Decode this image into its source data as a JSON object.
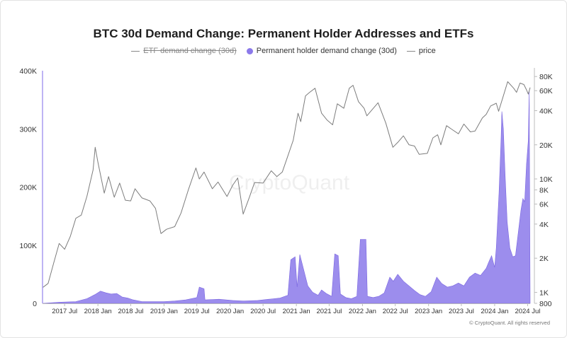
{
  "chart_data": {
    "type": "area",
    "title": "BTC 30d Demand Change: Permanent Holder Addresses and ETFs",
    "legend": [
      {
        "name": "ETF demand change (30d)",
        "style": "line",
        "color": "#8a8a8a",
        "hidden": true
      },
      {
        "name": "Permanent holder demand change (30d)",
        "style": "dot",
        "color": "#8b79ea",
        "hidden": false
      },
      {
        "name": "price",
        "style": "line",
        "color": "#8a8a8a",
        "hidden": false
      }
    ],
    "legend_position": "top-center",
    "x_ticks": [
      "2017 Jul",
      "2018 Jan",
      "2018 Jul",
      "2019 Jan",
      "2019 Jul",
      "2020 Jan",
      "2020 Jul",
      "2021 Jan",
      "2021 Jul",
      "2022 Jan",
      "2022 Jul",
      "2023 Jan",
      "2023 Jul",
      "2024 Jan",
      "2024 Jul"
    ],
    "x_range": [
      "2017-03-01",
      "2024-07-15"
    ],
    "y_left": {
      "ticks": [
        0,
        100000,
        200000,
        300000,
        400000
      ],
      "tick_labels": [
        "0",
        "100K",
        "200K",
        "300K",
        "400K"
      ],
      "range": [
        0,
        400000
      ]
    },
    "y_right": {
      "scale": "log",
      "ticks": [
        800,
        1000,
        2000,
        4000,
        6000,
        8000,
        10000,
        20000,
        40000,
        60000,
        80000
      ],
      "tick_labels": [
        "800",
        "1K",
        "2K",
        "4K",
        "6K",
        "8K",
        "10K",
        "20K",
        "40K",
        "60K",
        "80K"
      ],
      "range": [
        800,
        90000
      ]
    },
    "grid": false,
    "series": [
      {
        "name": "Permanent holder demand change (30d)",
        "axis": "left",
        "color": "#8b79ea",
        "points": [
          [
            "2017-03-01",
            0
          ],
          [
            "2017-06-01",
            2000
          ],
          [
            "2017-09-01",
            3000
          ],
          [
            "2017-11-01",
            8000
          ],
          [
            "2017-12-15",
            15000
          ],
          [
            "2018-01-15",
            21000
          ],
          [
            "2018-02-15",
            18000
          ],
          [
            "2018-03-15",
            16000
          ],
          [
            "2018-04-15",
            17000
          ],
          [
            "2018-05-15",
            11000
          ],
          [
            "2018-06-15",
            9000
          ],
          [
            "2018-07-15",
            6000
          ],
          [
            "2018-09-01",
            3000
          ],
          [
            "2018-11-01",
            3000
          ],
          [
            "2019-01-01",
            3000
          ],
          [
            "2019-03-01",
            4000
          ],
          [
            "2019-05-01",
            6000
          ],
          [
            "2019-06-01",
            8000
          ],
          [
            "2019-07-01",
            10000
          ],
          [
            "2019-07-15",
            28000
          ],
          [
            "2019-08-10",
            25000
          ],
          [
            "2019-08-15",
            6000
          ],
          [
            "2019-11-01",
            7000
          ],
          [
            "2020-01-15",
            5000
          ],
          [
            "2020-03-15",
            4000
          ],
          [
            "2020-06-01",
            5000
          ],
          [
            "2020-08-01",
            7000
          ],
          [
            "2020-10-01",
            9000
          ],
          [
            "2020-11-15",
            14000
          ],
          [
            "2020-12-01",
            75000
          ],
          [
            "2020-12-25",
            80000
          ],
          [
            "2021-01-05",
            28000
          ],
          [
            "2021-01-20",
            84000
          ],
          [
            "2021-02-15",
            52000
          ],
          [
            "2021-03-05",
            30000
          ],
          [
            "2021-04-01",
            19000
          ],
          [
            "2021-05-01",
            14000
          ],
          [
            "2021-05-20",
            23000
          ],
          [
            "2021-06-15",
            17000
          ],
          [
            "2021-07-15",
            12000
          ],
          [
            "2021-08-01",
            85000
          ],
          [
            "2021-08-20",
            82000
          ],
          [
            "2021-09-01",
            16000
          ],
          [
            "2021-10-01",
            10000
          ],
          [
            "2021-11-01",
            8000
          ],
          [
            "2021-12-01",
            12000
          ],
          [
            "2021-12-20",
            110000
          ],
          [
            "2022-01-20",
            110000
          ],
          [
            "2022-01-28",
            12000
          ],
          [
            "2022-03-01",
            10000
          ],
          [
            "2022-04-01",
            12000
          ],
          [
            "2022-05-01",
            18000
          ],
          [
            "2022-06-01",
            45000
          ],
          [
            "2022-06-20",
            38000
          ],
          [
            "2022-07-15",
            50000
          ],
          [
            "2022-08-15",
            38000
          ],
          [
            "2022-09-15",
            30000
          ],
          [
            "2022-10-15",
            22000
          ],
          [
            "2022-11-15",
            15000
          ],
          [
            "2022-12-15",
            12000
          ],
          [
            "2023-01-15",
            20000
          ],
          [
            "2023-02-15",
            45000
          ],
          [
            "2023-03-15",
            34000
          ],
          [
            "2023-04-15",
            28000
          ],
          [
            "2023-05-15",
            30000
          ],
          [
            "2023-06-15",
            35000
          ],
          [
            "2023-07-15",
            30000
          ],
          [
            "2023-08-15",
            45000
          ],
          [
            "2023-09-15",
            52000
          ],
          [
            "2023-10-15",
            48000
          ],
          [
            "2023-11-15",
            60000
          ],
          [
            "2023-12-01",
            72000
          ],
          [
            "2023-12-15",
            82000
          ],
          [
            "2024-01-01",
            62000
          ],
          [
            "2024-01-10",
            95000
          ],
          [
            "2024-01-25",
            190000
          ],
          [
            "2024-02-05",
            280000
          ],
          [
            "2024-02-10",
            330000
          ],
          [
            "2024-02-18",
            300000
          ],
          [
            "2024-02-28",
            220000
          ],
          [
            "2024-03-10",
            140000
          ],
          [
            "2024-03-25",
            95000
          ],
          [
            "2024-04-10",
            80000
          ],
          [
            "2024-04-25",
            82000
          ],
          [
            "2024-05-10",
            120000
          ],
          [
            "2024-05-25",
            160000
          ],
          [
            "2024-06-05",
            180000
          ],
          [
            "2024-06-15",
            175000
          ],
          [
            "2024-06-25",
            240000
          ],
          [
            "2024-07-05",
            280000
          ],
          [
            "2024-07-10",
            365000
          ],
          [
            "2024-07-15",
            0
          ]
        ]
      },
      {
        "name": "price",
        "axis": "right",
        "color": "#7d7d7d",
        "points": [
          [
            "2017-03-01",
            1100
          ],
          [
            "2017-04-01",
            1200
          ],
          [
            "2017-05-01",
            1800
          ],
          [
            "2017-06-01",
            2700
          ],
          [
            "2017-07-01",
            2400
          ],
          [
            "2017-08-01",
            3100
          ],
          [
            "2017-09-01",
            4500
          ],
          [
            "2017-10-01",
            4800
          ],
          [
            "2017-11-01",
            7000
          ],
          [
            "2017-12-05",
            12000
          ],
          [
            "2017-12-17",
            19000
          ],
          [
            "2018-01-01",
            14000
          ],
          [
            "2018-02-05",
            7500
          ],
          [
            "2018-03-01",
            10500
          ],
          [
            "2018-04-01",
            6900
          ],
          [
            "2018-05-01",
            9200
          ],
          [
            "2018-06-01",
            6500
          ],
          [
            "2018-07-01",
            6400
          ],
          [
            "2018-07-25",
            8200
          ],
          [
            "2018-09-01",
            6800
          ],
          [
            "2018-10-15",
            6400
          ],
          [
            "2018-11-15",
            5500
          ],
          [
            "2018-12-15",
            3300
          ],
          [
            "2019-01-15",
            3600
          ],
          [
            "2019-03-01",
            3800
          ],
          [
            "2019-04-05",
            5000
          ],
          [
            "2019-05-15",
            8000
          ],
          [
            "2019-06-26",
            12500
          ],
          [
            "2019-07-15",
            10000
          ],
          [
            "2019-08-10",
            11500
          ],
          [
            "2019-09-25",
            8200
          ],
          [
            "2019-10-26",
            9400
          ],
          [
            "2019-12-15",
            7000
          ],
          [
            "2020-01-15",
            8800
          ],
          [
            "2020-02-12",
            10200
          ],
          [
            "2020-03-13",
            4900
          ],
          [
            "2020-04-15",
            6800
          ],
          [
            "2020-05-15",
            9300
          ],
          [
            "2020-07-01",
            9200
          ],
          [
            "2020-08-15",
            11800
          ],
          [
            "2020-09-15",
            10500
          ],
          [
            "2020-10-15",
            11500
          ],
          [
            "2020-11-15",
            16000
          ],
          [
            "2020-12-15",
            22000
          ],
          [
            "2021-01-10",
            38000
          ],
          [
            "2021-01-25",
            32000
          ],
          [
            "2021-02-20",
            54000
          ],
          [
            "2021-03-15",
            58000
          ],
          [
            "2021-04-14",
            63000
          ],
          [
            "2021-05-20",
            38000
          ],
          [
            "2021-06-20",
            33000
          ],
          [
            "2021-07-20",
            30000
          ],
          [
            "2021-08-15",
            46000
          ],
          [
            "2021-09-20",
            42000
          ],
          [
            "2021-10-20",
            63000
          ],
          [
            "2021-11-10",
            67000
          ],
          [
            "2021-12-10",
            48000
          ],
          [
            "2022-01-10",
            42000
          ],
          [
            "2022-01-25",
            36000
          ],
          [
            "2022-03-28",
            47000
          ],
          [
            "2022-05-10",
            31000
          ],
          [
            "2022-06-18",
            19000
          ],
          [
            "2022-07-15",
            21000
          ],
          [
            "2022-08-15",
            24000
          ],
          [
            "2022-09-15",
            20000
          ],
          [
            "2022-10-15",
            19500
          ],
          [
            "2022-11-10",
            16500
          ],
          [
            "2022-12-25",
            16800
          ],
          [
            "2023-01-25",
            23000
          ],
          [
            "2023-02-20",
            24500
          ],
          [
            "2023-03-10",
            20000
          ],
          [
            "2023-04-10",
            29500
          ],
          [
            "2023-05-15",
            27000
          ],
          [
            "2023-06-15",
            25000
          ],
          [
            "2023-07-15",
            30500
          ],
          [
            "2023-08-20",
            26000
          ],
          [
            "2023-09-15",
            26500
          ],
          [
            "2023-10-25",
            34500
          ],
          [
            "2023-11-15",
            37000
          ],
          [
            "2023-12-10",
            44000
          ],
          [
            "2024-01-10",
            46500
          ],
          [
            "2024-01-23",
            39500
          ],
          [
            "2024-02-15",
            52000
          ],
          [
            "2024-03-13",
            72000
          ],
          [
            "2024-04-15",
            63000
          ],
          [
            "2024-05-01",
            58000
          ],
          [
            "2024-05-20",
            70000
          ],
          [
            "2024-06-10",
            68000
          ],
          [
            "2024-06-25",
            61000
          ],
          [
            "2024-07-05",
            56000
          ],
          [
            "2024-07-15",
            64000
          ]
        ]
      }
    ]
  },
  "watermark": "CryptoQuant",
  "credit": "© CryptoQuant. All rights reserved"
}
